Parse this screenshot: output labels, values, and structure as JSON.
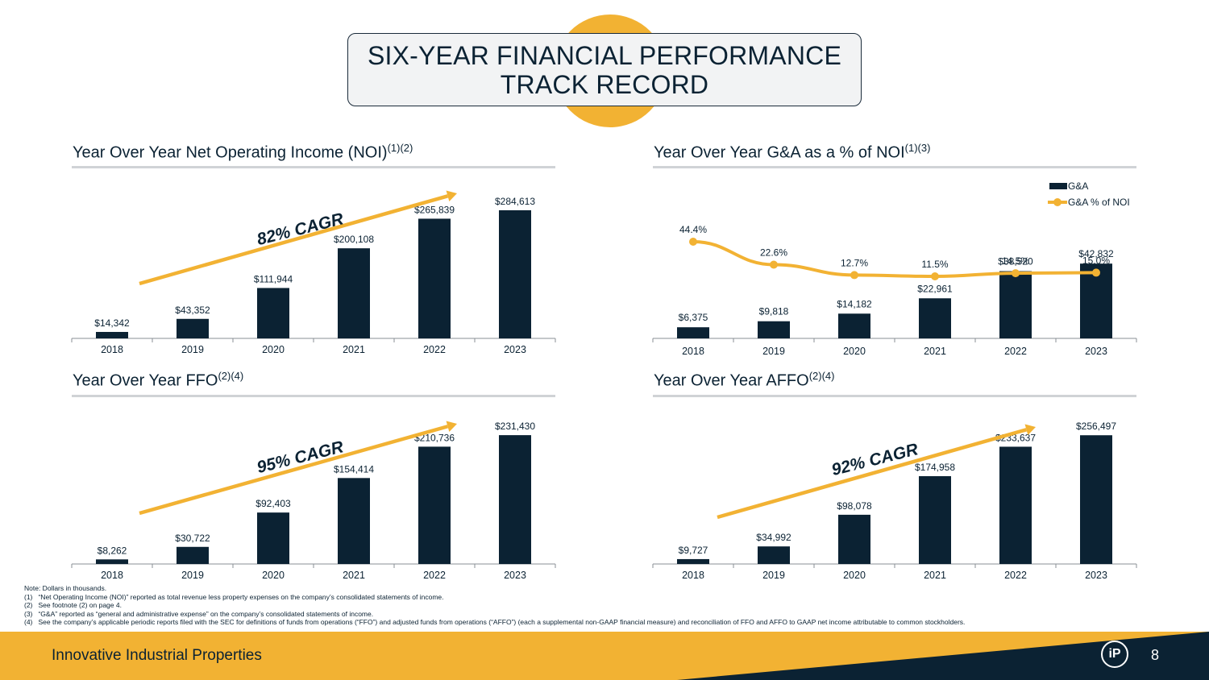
{
  "title": {
    "line1": "SIX-YEAR FINANCIAL PERFORMANCE",
    "line2": "TRACK RECORD"
  },
  "panels": {
    "noi": {
      "title": "Year Over Year Net Operating Income (NOI)",
      "sup": "(1)(2)",
      "cagr": "82% CAGR"
    },
    "ga": {
      "title": "Year Over Year G&A as a % of NOI",
      "sup": "(1)(3)"
    },
    "ffo": {
      "title": "Year Over Year FFO",
      "sup": "(2)(4)",
      "cagr": "95% CAGR"
    },
    "affo": {
      "title": "Year Over Year AFFO",
      "sup": "(2)(4)",
      "cagr": "92% CAGR"
    }
  },
  "colors": {
    "navy": "#0b2233",
    "gold": "#f2b233",
    "rule": "#d0d3d6"
  },
  "chart_data": [
    {
      "id": "noi",
      "type": "bar",
      "categories": [
        "2018",
        "2019",
        "2020",
        "2021",
        "2022",
        "2023"
      ],
      "values": [
        14342,
        43352,
        111944,
        200108,
        265839,
        284613
      ],
      "labels": [
        "$14,342",
        "$43,352",
        "$111,944",
        "$200,108",
        "$265,839",
        "$284,613"
      ],
      "ylim": [
        0,
        340000
      ]
    },
    {
      "id": "ga",
      "type": "bar",
      "categories": [
        "2018",
        "2019",
        "2020",
        "2021",
        "2022",
        "2023"
      ],
      "series": [
        {
          "name": "G&A",
          "type": "bar",
          "values": [
            6375,
            9818,
            14182,
            22961,
            38520,
            42832
          ],
          "labels": [
            "$6,375",
            "$9,818",
            "$14,182",
            "$22,961",
            "$38,520",
            "$42,832"
          ]
        },
        {
          "name": "G&A % of NOI",
          "type": "line",
          "values": [
            44.4,
            22.6,
            12.7,
            11.5,
            14.5,
            15.0
          ],
          "labels": [
            "44.4%",
            "22.6%",
            "12.7%",
            "11.5%",
            "14.5%",
            "15.0%"
          ]
        }
      ],
      "legend": "top-right"
    },
    {
      "id": "ffo",
      "type": "bar",
      "categories": [
        "2018",
        "2019",
        "2020",
        "2021",
        "2022",
        "2023"
      ],
      "values": [
        8262,
        30722,
        92403,
        154414,
        210736,
        231430
      ],
      "labels": [
        "$8,262",
        "$30,722",
        "$92,403",
        "$154,414",
        "$210,736",
        "$231,430"
      ],
      "ylim": [
        0,
        275000
      ]
    },
    {
      "id": "affo",
      "type": "bar",
      "categories": [
        "2018",
        "2019",
        "2020",
        "2021",
        "2022",
        "2023"
      ],
      "values": [
        9727,
        34992,
        98078,
        174958,
        233637,
        256497
      ],
      "labels": [
        "$9,727",
        "$34,992",
        "$98,078",
        "$174,958",
        "$233,637",
        "$256,497"
      ],
      "ylim": [
        0,
        305000
      ]
    }
  ],
  "notes": [
    "Note: Dollars in thousands.",
    "(1)   “Net Operating Income (NOI)” reported as total revenue less property expenses on the company’s consolidated statements of income.",
    "(2)   See footnote (2) on page 4.",
    "(3)   “G&A” reported as “general and administrative expense” on the company’s consolidated statements of income.",
    "(4)   See the company’s applicable periodic reports filed with the SEC for definitions of funds from operations (“FFO”) and adjusted funds from operations (“AFFO”) (each a supplemental non-GAAP financial measure) and reconciliation of FFO and AFFO to GAAP net income attributable to common stockholders."
  ],
  "footer": {
    "company": "Innovative Industrial Properties",
    "page": "8",
    "logo": "iP"
  }
}
